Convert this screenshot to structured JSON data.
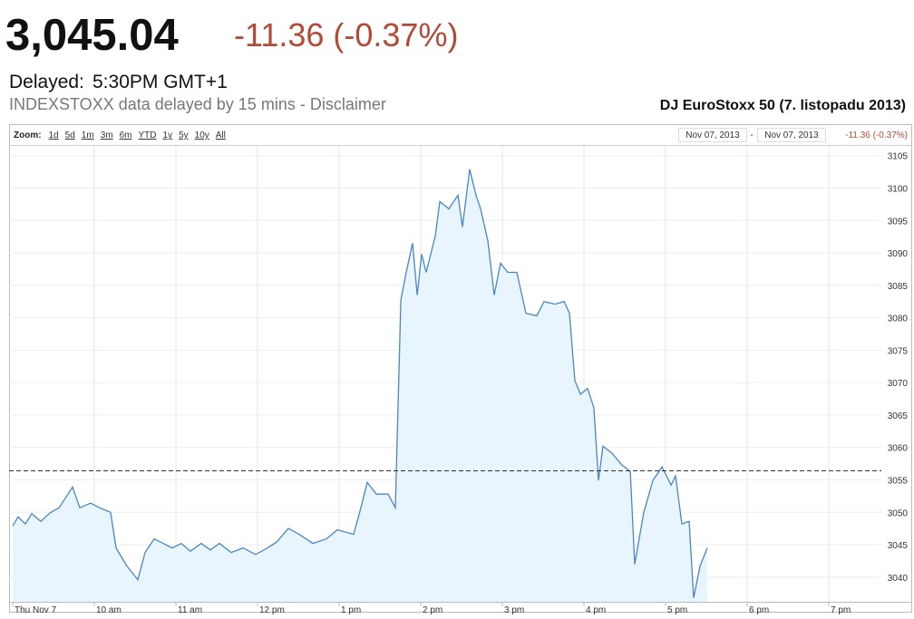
{
  "header": {
    "price": "3,045.04",
    "change": "-11.36 (-0.37%)",
    "delayed_label": "Delayed:",
    "delayed_time": "5:30PM GMT+1",
    "disclaimer": "INDEXSTOXX data delayed by 15 mins - Disclaimer",
    "chart_name": "DJ EuroStoxx 50 (7. listopadu 2013)"
  },
  "toolbar": {
    "zoom_label": "Zoom:",
    "zoom_options": [
      "1d",
      "5d",
      "1m",
      "3m",
      "6m",
      "YTD",
      "1y",
      "5y",
      "10y",
      "All"
    ],
    "range_from": "Nov 07, 2013",
    "range_separator": "-",
    "range_to": "Nov 07, 2013",
    "range_change": "-11.36 (-0.37%)"
  },
  "chart_data": {
    "type": "line",
    "x": [
      9.0,
      9.067,
      9.156,
      9.233,
      9.344,
      9.456,
      9.567,
      9.678,
      9.733,
      9.822,
      9.956,
      10.067,
      10.2,
      10.267,
      10.4,
      10.533,
      10.622,
      10.733,
      10.844,
      10.956,
      11.067,
      11.178,
      11.311,
      11.422,
      11.533,
      11.678,
      11.822,
      11.978,
      12.122,
      12.233,
      12.378,
      12.511,
      12.678,
      12.844,
      12.978,
      13.178,
      13.267,
      13.344,
      13.456,
      13.6,
      13.689,
      13.756,
      13.822,
      13.9,
      13.956,
      14.011,
      14.067,
      14.178,
      14.233,
      14.344,
      14.456,
      14.511,
      14.6,
      14.678,
      14.733,
      14.822,
      14.9,
      14.978,
      15.067,
      15.178,
      15.289,
      15.422,
      15.511,
      15.644,
      15.756,
      15.822,
      15.889,
      15.956,
      16.044,
      16.122,
      16.178,
      16.233,
      16.344,
      16.456,
      16.567,
      16.622,
      16.733,
      16.844,
      16.956,
      17.067,
      17.122,
      17.2,
      17.289,
      17.344,
      17.422,
      17.511
    ],
    "series": [
      {
        "color": "#4a86c5",
        "fill": "#e8f5fc",
        "values": [
          3047.9,
          3049.3,
          3048.2,
          3049.8,
          3048.6,
          3049.9,
          3050.7,
          3052.8,
          3053.9,
          3050.7,
          3051.4,
          3050.7,
          3050.0,
          3044.5,
          3041.7,
          3039.6,
          3043.8,
          3045.9,
          3045.2,
          3044.5,
          3045.2,
          3044.0,
          3045.2,
          3044.2,
          3045.2,
          3043.8,
          3044.5,
          3043.5,
          3044.5,
          3045.4,
          3047.5,
          3046.6,
          3045.2,
          3045.9,
          3047.3,
          3046.6,
          3050.7,
          3054.6,
          3052.8,
          3052.8,
          3050.7,
          3082.8,
          3087.0,
          3091.5,
          3083.5,
          3089.8,
          3087.0,
          3092.6,
          3097.9,
          3096.8,
          3098.9,
          3094.0,
          3102.9,
          3098.9,
          3096.8,
          3091.9,
          3083.5,
          3088.4,
          3087.0,
          3087.0,
          3080.7,
          3080.3,
          3082.5,
          3082.1,
          3082.5,
          3080.7,
          3070.3,
          3068.2,
          3069.1,
          3066.1,
          3054.9,
          3060.2,
          3059.1,
          3057.4,
          3056.3,
          3042.0,
          3050.0,
          3054.9,
          3057.0,
          3054.2,
          3055.6,
          3048.2,
          3048.6,
          3036.8,
          3041.7,
          3044.5
        ]
      }
    ],
    "previous_close": 3056.4,
    "xlim": [
      9,
      19.644
    ],
    "xticks": [
      {
        "value": 9,
        "label": "Thu Nov 7"
      },
      {
        "value": 10,
        "label": "10 am"
      },
      {
        "value": 11,
        "label": "11 am"
      },
      {
        "value": 12,
        "label": "12 pm"
      },
      {
        "value": 13,
        "label": "1 pm"
      },
      {
        "value": 14,
        "label": "2 pm"
      },
      {
        "value": 15,
        "label": "3 pm"
      },
      {
        "value": 16,
        "label": "4 pm"
      },
      {
        "value": 17,
        "label": "5 pm"
      },
      {
        "value": 18,
        "label": "6 pm"
      },
      {
        "value": 19,
        "label": "7 pm"
      }
    ],
    "ylim": [
      3036.2,
      3106.5
    ],
    "yticks": [
      3040,
      3045,
      3050,
      3055,
      3060,
      3065,
      3070,
      3075,
      3080,
      3085,
      3090,
      3095,
      3100,
      3105
    ],
    "grid": true
  }
}
